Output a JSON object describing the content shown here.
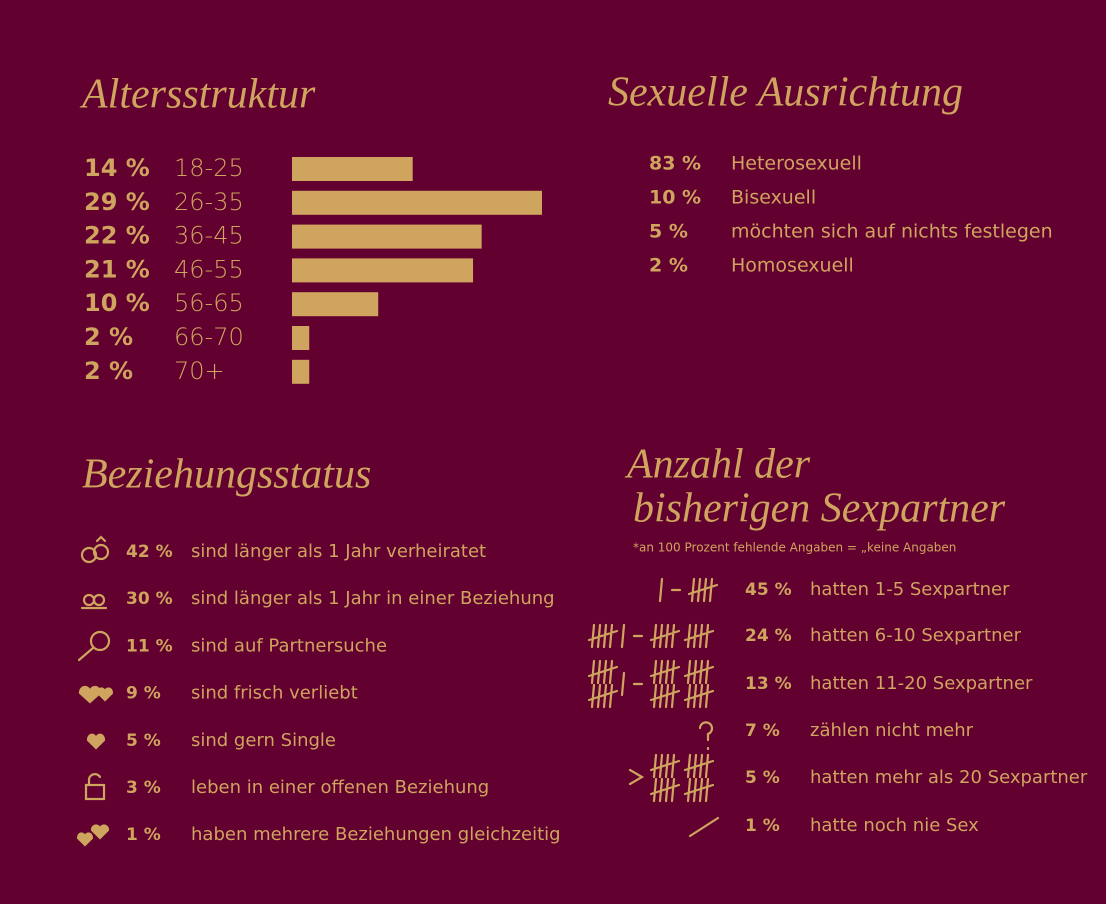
{
  "chart_data": {
    "type": "bar",
    "title": "Altersstruktur",
    "categories": [
      "18-25",
      "26-35",
      "36-45",
      "46-55",
      "56-65",
      "66-70",
      "70+"
    ],
    "values": [
      14,
      29,
      22,
      21,
      10,
      2,
      2
    ],
    "value_labels": [
      "14 %",
      "29 %",
      "22 %",
      "21 %",
      "10 %",
      "2 %",
      "2 %"
    ],
    "color": "#cfa45e"
  },
  "sexual_orientation": {
    "title": "Sexuelle Ausrichtung",
    "rows": [
      {
        "percent": "83 %",
        "label": "Heterosexuell"
      },
      {
        "percent": "10 %",
        "label": "Bisexuell"
      },
      {
        "percent": "5 %",
        "label": "möchten sich auf nichts festlegen"
      },
      {
        "percent": "2 %",
        "label": "Homosexuell"
      }
    ]
  },
  "relationship_status": {
    "title": "Beziehungsstatus",
    "rows": [
      {
        "percent": "42 %",
        "label": "sind länger als 1 Jahr verheiratet"
      },
      {
        "percent": "30 %",
        "label": "sind länger als 1 Jahr in einer Beziehung"
      },
      {
        "percent": "11 %",
        "label": "sind auf Partnersuche"
      },
      {
        "percent": "9 %",
        "label": "sind frisch verliebt"
      },
      {
        "percent": "5 %",
        "label": "sind gern Single"
      },
      {
        "percent": "3 %",
        "label": "leben in einer offenen Beziehung"
      },
      {
        "percent": "1 %",
        "label": "haben mehrere Beziehungen gleichzeitig"
      }
    ]
  },
  "sex_partners": {
    "title_lines": [
      "Anzahl der",
      "bisherigen Sexpartner"
    ],
    "note": "*an 100 Prozent fehlende Angaben = „keine Angaben",
    "rows": [
      {
        "percent": "45 %",
        "label": "hatten 1-5 Sexpartner"
      },
      {
        "percent": "24 %",
        "label": "hatten 6-10 Sexpartner"
      },
      {
        "percent": "13 %",
        "label": "hatten 11-20 Sexpartner"
      },
      {
        "percent": "7 %",
        "label": "zählen nicht mehr"
      },
      {
        "percent": "5 %",
        "label": "hatten mehr als 20 Sexpartner"
      },
      {
        "percent": "1 %",
        "label": "hatte noch nie Sex"
      }
    ]
  }
}
